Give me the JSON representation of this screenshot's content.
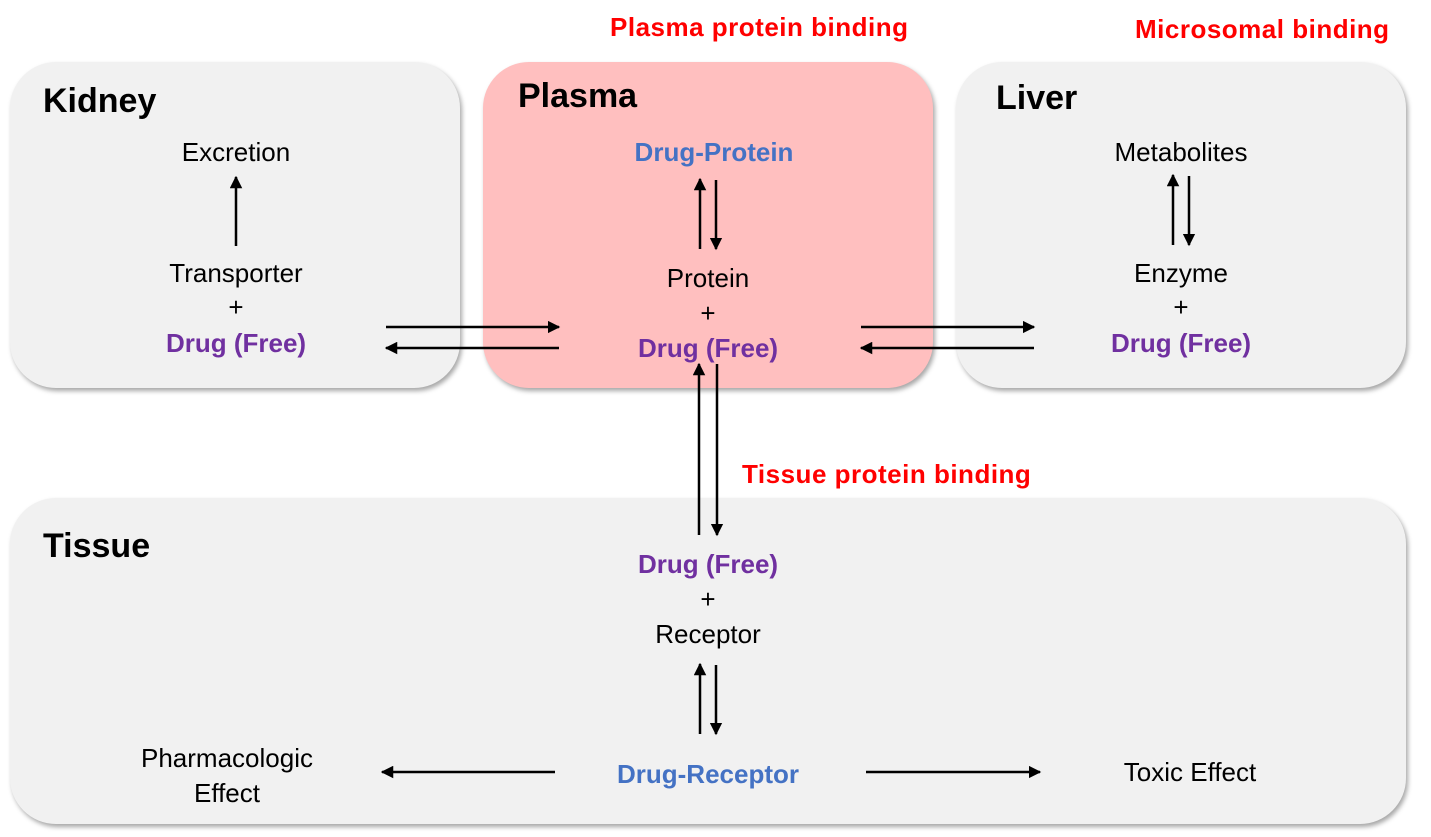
{
  "labels": {
    "plasma_protein_binding": "Plasma protein binding",
    "microsomal_binding": "Microsomal binding",
    "tissue_protein_binding": "Tissue protein binding"
  },
  "kidney": {
    "title": "Kidney",
    "excretion": "Excretion",
    "transporter": "Transporter",
    "plus": "+",
    "drug_free": "Drug (Free)"
  },
  "plasma": {
    "title": "Plasma",
    "drug_protein": "Drug-Protein",
    "protein": "Protein",
    "plus": "+",
    "drug_free": "Drug (Free)"
  },
  "liver": {
    "title": "Liver",
    "metabolites": "Metabolites",
    "enzyme": "Enzyme",
    "plus": "+",
    "drug_free": "Drug (Free)"
  },
  "tissue": {
    "title": "Tissue",
    "drug_free": "Drug (Free)",
    "plus": "+",
    "receptor": "Receptor",
    "drug_receptor": "Drug-Receptor",
    "pharmacologic_effect_line1": "Pharmacologic",
    "pharmacologic_effect_line2": "Effect",
    "toxic_effect": "Toxic Effect"
  },
  "colors": {
    "free_drug": "#7030a0",
    "complex": "#4472c4",
    "binding_label": "#ff0000",
    "plasma_box": "#ffbfbf",
    "compartment_box": "#f1f1f1"
  }
}
